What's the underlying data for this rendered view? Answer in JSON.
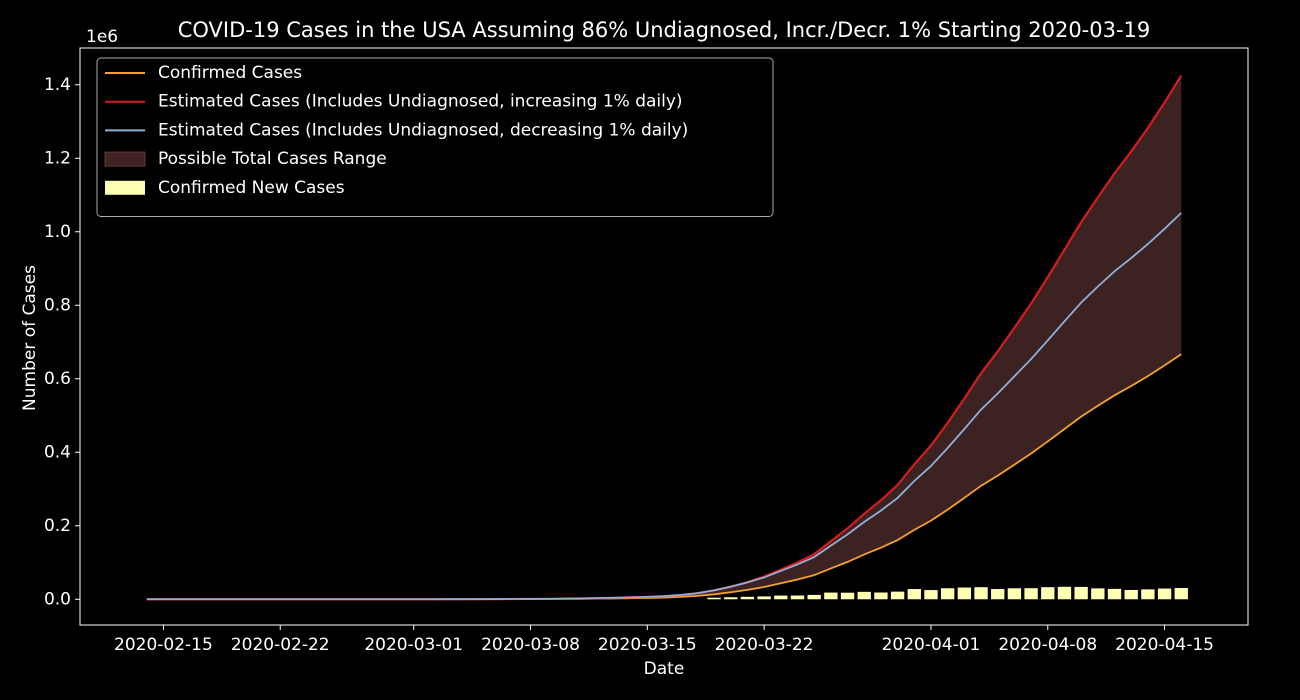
{
  "chart_data": {
    "type": "line",
    "title": "COVID-19 Cases in the USA Assuming 86% Undiagnosed, Incr./Decr. 1% Starting 2020-03-19",
    "x_label": "Date",
    "y_label": "Number of Cases",
    "y_offset_label": "1e6",
    "x": [
      "2020-02-14",
      "2020-02-15",
      "2020-02-16",
      "2020-02-17",
      "2020-02-18",
      "2020-02-19",
      "2020-02-20",
      "2020-02-21",
      "2020-02-22",
      "2020-02-23",
      "2020-02-24",
      "2020-02-25",
      "2020-02-26",
      "2020-02-27",
      "2020-02-28",
      "2020-02-29",
      "2020-03-01",
      "2020-03-02",
      "2020-03-03",
      "2020-03-04",
      "2020-03-05",
      "2020-03-06",
      "2020-03-07",
      "2020-03-08",
      "2020-03-09",
      "2020-03-10",
      "2020-03-11",
      "2020-03-12",
      "2020-03-13",
      "2020-03-14",
      "2020-03-15",
      "2020-03-16",
      "2020-03-17",
      "2020-03-18",
      "2020-03-19",
      "2020-03-20",
      "2020-03-21",
      "2020-03-22",
      "2020-03-23",
      "2020-03-24",
      "2020-03-25",
      "2020-03-26",
      "2020-03-27",
      "2020-03-28",
      "2020-03-29",
      "2020-03-30",
      "2020-03-31",
      "2020-04-01",
      "2020-04-02",
      "2020-04-03",
      "2020-04-04",
      "2020-04-05",
      "2020-04-06",
      "2020-04-07",
      "2020-04-08",
      "2020-04-09",
      "2020-04-10",
      "2020-04-11",
      "2020-04-12",
      "2020-04-13",
      "2020-04-14",
      "2020-04-15",
      "2020-04-16"
    ],
    "series": [
      {
        "name": "Confirmed Cases",
        "color": "#f5a030",
        "kind": "line",
        "values": [
          1.5e-05,
          1.5e-05,
          1.5e-05,
          1.5e-05,
          1.5e-05,
          1.5e-05,
          1.5e-05,
          1.5e-05,
          1.5e-05,
          1.5e-05,
          1.5e-05,
          1.5e-05,
          1.5e-05,
          1.5e-05,
          1.5e-05,
          1.5e-05,
          3e-05,
          5e-05,
          0.0001,
          0.00015,
          0.0002,
          0.0003,
          0.0004,
          0.0005,
          0.0006,
          0.001,
          0.0013,
          0.0017,
          0.0022,
          0.0029,
          0.0036,
          0.0047,
          0.0065,
          0.0092,
          0.0135,
          0.019,
          0.0257,
          0.0335,
          0.0436,
          0.0538,
          0.0656,
          0.0838,
          0.1017,
          0.1219,
          0.1403,
          0.1611,
          0.1889,
          0.2139,
          0.2439,
          0.2758,
          0.3087,
          0.3365,
          0.3664,
          0.3966,
          0.4295,
          0.4634,
          0.497,
          0.5267,
          0.555,
          0.5803,
          0.6072,
          0.6364,
          0.6671
        ]
      },
      {
        "name": "Estimated Cases (Includes Undiagnosed, increasing 1% daily)",
        "color": "#d81c1c",
        "kind": "line",
        "values": [
          2.7e-05,
          2.7e-05,
          2.7e-05,
          2.7e-05,
          2.7e-05,
          2.7e-05,
          2.7e-05,
          2.7e-05,
          2.7e-05,
          2.7e-05,
          2.7e-05,
          2.7e-05,
          2.7e-05,
          2.7e-05,
          2.7e-05,
          2.7e-05,
          5.4e-05,
          9e-05,
          0.00018,
          0.00027,
          0.00036,
          0.00054,
          0.00072,
          0.0009,
          0.00108,
          0.0018,
          0.00234,
          0.00306,
          0.00396,
          0.00522,
          0.00648,
          0.00846,
          0.0117,
          0.01656,
          0.0243,
          0.0344,
          0.0469,
          0.0615,
          0.0806,
          0.1001,
          0.1228,
          0.1579,
          0.1928,
          0.2326,
          0.2694,
          0.3112,
          0.3672,
          0.4184,
          0.48,
          0.5461,
          0.6149,
          0.6743,
          0.7387,
          0.8043,
          0.8762,
          0.9509,
          1.0258,
          1.0934,
          1.1588,
          1.2186,
          1.2824,
          1.3517,
          1.4249
        ]
      },
      {
        "name": "Estimated Cases (Includes Undiagnosed, decreasing 1% daily)",
        "color": "#8fb0d8",
        "kind": "line",
        "values": [
          2.7e-05,
          2.7e-05,
          2.7e-05,
          2.7e-05,
          2.7e-05,
          2.7e-05,
          2.7e-05,
          2.7e-05,
          2.7e-05,
          2.7e-05,
          2.7e-05,
          2.7e-05,
          2.7e-05,
          2.7e-05,
          2.7e-05,
          2.7e-05,
          5.4e-05,
          9e-05,
          0.00018,
          0.00027,
          0.00036,
          0.00054,
          0.00072,
          0.0009,
          0.00108,
          0.0018,
          0.00234,
          0.00306,
          0.00396,
          0.00522,
          0.00648,
          0.00846,
          0.0117,
          0.01656,
          0.0243,
          0.034,
          0.0458,
          0.0595,
          0.0771,
          0.0947,
          0.1149,
          0.1461,
          0.1766,
          0.2106,
          0.2413,
          0.2758,
          0.3219,
          0.3628,
          0.4117,
          0.4633,
          0.5161,
          0.5599,
          0.6068,
          0.6536,
          0.7044,
          0.7563,
          0.8071,
          0.8511,
          0.8924,
          0.9285,
          0.9667,
          1.0081,
          1.0513
        ]
      },
      {
        "name": "Confirmed New Cases",
        "color": "#ffffb3",
        "kind": "bar",
        "values": [
          null,
          null,
          null,
          null,
          null,
          null,
          null,
          null,
          null,
          null,
          null,
          null,
          null,
          null,
          null,
          null,
          null,
          null,
          null,
          null,
          null,
          null,
          null,
          null,
          null,
          null,
          null,
          null,
          null,
          null,
          null,
          null,
          null,
          null,
          0.0043,
          0.0055,
          0.0067,
          0.0078,
          0.0101,
          0.0102,
          0.0118,
          0.0182,
          0.0179,
          0.0202,
          0.0184,
          0.0208,
          0.0278,
          0.025,
          0.03,
          0.0319,
          0.0329,
          0.0278,
          0.0299,
          0.0302,
          0.0329,
          0.0339,
          0.0336,
          0.0297,
          0.0283,
          0.0253,
          0.0269,
          0.0292,
          0.0307
        ]
      }
    ],
    "range_fill": {
      "name": "Possible Total Cases Range",
      "color": "#402424"
    },
    "legend": "upper left",
    "xlim": [
      "2020-02-10",
      "2020-04-20"
    ],
    "xticks": [
      "2020-02-15",
      "2020-02-22",
      "2020-03-01",
      "2020-03-08",
      "2020-03-15",
      "2020-03-22",
      "2020-04-01",
      "2020-04-08",
      "2020-04-15"
    ],
    "ylim": [
      -0.07,
      1.5
    ],
    "yticks": [
      {
        "value": 0,
        "label": "0.0"
      },
      0.2,
      0.4,
      0.6,
      0.8,
      {
        "value": 1,
        "label": "1.0"
      },
      1.2,
      1.4
    ]
  }
}
